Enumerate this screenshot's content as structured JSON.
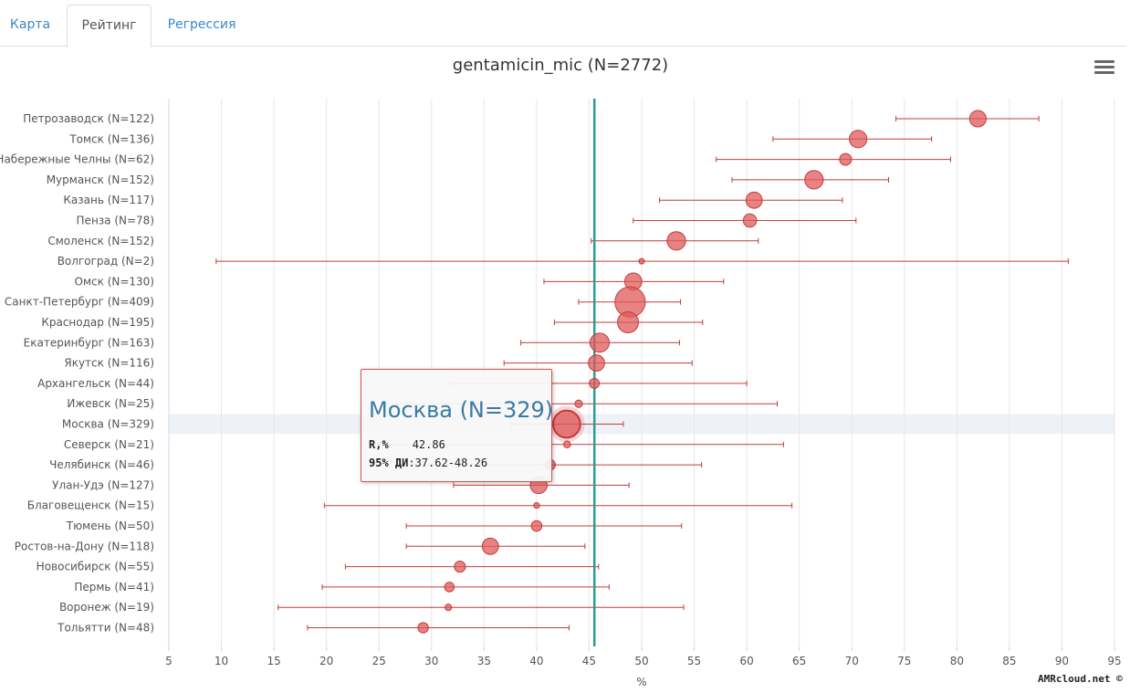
{
  "tabs": [
    {
      "label": "Карта",
      "active": false
    },
    {
      "label": "Рейтинг",
      "active": true
    },
    {
      "label": "Регрессия",
      "active": false
    }
  ],
  "menu_icon": "hamburger-icon",
  "colors": {
    "point": "#e05a5a",
    "point_stroke": "#c23b3b",
    "reference_line": "#2a9d8f",
    "tab_link": "#3a87c8",
    "highlight_band": "#eef2f8"
  },
  "tooltip": {
    "title": "Москва (N=329)",
    "r_label": "R,%",
    "r_value": "42.86",
    "ci_label": "95% ДИ",
    "ci_value": ":37.62-48.26"
  },
  "credits": "AMRcloud.net ©",
  "chart_data": {
    "type": "scatter",
    "title": "gentamicin_mic (N=2772)",
    "xlabel": "%",
    "ylabel": "",
    "xlim": [
      5,
      95
    ],
    "xticks": [
      5,
      10,
      15,
      20,
      25,
      30,
      35,
      40,
      45,
      50,
      55,
      60,
      65,
      70,
      75,
      80,
      85,
      90,
      95
    ],
    "reference_value": 45.5,
    "grid": true,
    "highlighted": "Москва (N=329)",
    "points": [
      {
        "label": "Петрозаводск (N=122)",
        "n": 122,
        "value": 82.0,
        "ci_low": 74.2,
        "ci_high": 87.8
      },
      {
        "label": "Томск (N=136)",
        "n": 136,
        "value": 70.6,
        "ci_low": 62.5,
        "ci_high": 77.6
      },
      {
        "label": "Набережные Челны (N=62)",
        "n": 62,
        "value": 69.4,
        "ci_low": 57.1,
        "ci_high": 79.4
      },
      {
        "label": "Мурманск (N=152)",
        "n": 152,
        "value": 66.4,
        "ci_low": 58.6,
        "ci_high": 73.5
      },
      {
        "label": "Казань (N=117)",
        "n": 117,
        "value": 60.7,
        "ci_low": 51.7,
        "ci_high": 69.1
      },
      {
        "label": "Пенза (N=78)",
        "n": 78,
        "value": 60.3,
        "ci_low": 49.2,
        "ci_high": 70.4
      },
      {
        "label": "Смоленск (N=152)",
        "n": 152,
        "value": 53.3,
        "ci_low": 45.2,
        "ci_high": 61.1
      },
      {
        "label": "Волгоград (N=2)",
        "n": 2,
        "value": 50.0,
        "ci_low": 9.5,
        "ci_high": 90.6
      },
      {
        "label": "Омск (N=130)",
        "n": 130,
        "value": 49.2,
        "ci_low": 40.7,
        "ci_high": 57.8
      },
      {
        "label": "Санкт-Петербург (N=409)",
        "n": 409,
        "value": 48.9,
        "ci_low": 44.0,
        "ci_high": 53.7
      },
      {
        "label": "Краснодар (N=195)",
        "n": 195,
        "value": 48.7,
        "ci_low": 41.7,
        "ci_high": 55.8
      },
      {
        "label": "Екатеринбург (N=163)",
        "n": 163,
        "value": 46.0,
        "ci_low": 38.5,
        "ci_high": 53.6
      },
      {
        "label": "Якутск (N=116)",
        "n": 116,
        "value": 45.7,
        "ci_low": 36.9,
        "ci_high": 54.8
      },
      {
        "label": "Архангельск (N=44)",
        "n": 44,
        "value": 45.5,
        "ci_low": 31.7,
        "ci_high": 60.0
      },
      {
        "label": "Ижевск (N=25)",
        "n": 25,
        "value": 44.0,
        "ci_low": 26.7,
        "ci_high": 62.9
      },
      {
        "label": "Москва (N=329)",
        "n": 329,
        "value": 42.86,
        "ci_low": 37.62,
        "ci_high": 48.26
      },
      {
        "label": "Северск (N=21)",
        "n": 21,
        "value": 42.9,
        "ci_low": 24.5,
        "ci_high": 63.5
      },
      {
        "label": "Челябинск (N=46)",
        "n": 46,
        "value": 41.3,
        "ci_low": 28.3,
        "ci_high": 55.7
      },
      {
        "label": "Улан-Удэ (N=127)",
        "n": 127,
        "value": 40.2,
        "ci_low": 32.1,
        "ci_high": 48.8
      },
      {
        "label": "Благовещенск (N=15)",
        "n": 15,
        "value": 40.0,
        "ci_low": 19.8,
        "ci_high": 64.3
      },
      {
        "label": "Тюмень (N=50)",
        "n": 50,
        "value": 40.0,
        "ci_low": 27.6,
        "ci_high": 53.8
      },
      {
        "label": "Ростов-на-Дону (N=118)",
        "n": 118,
        "value": 35.6,
        "ci_low": 27.6,
        "ci_high": 44.6
      },
      {
        "label": "Новосибирск (N=55)",
        "n": 55,
        "value": 32.7,
        "ci_low": 21.8,
        "ci_high": 45.9
      },
      {
        "label": "Пермь (N=41)",
        "n": 41,
        "value": 31.7,
        "ci_low": 19.6,
        "ci_high": 46.9
      },
      {
        "label": "Воронеж (N=19)",
        "n": 19,
        "value": 31.6,
        "ci_low": 15.4,
        "ci_high": 54.0
      },
      {
        "label": "Тольятти (N=48)",
        "n": 48,
        "value": 29.2,
        "ci_low": 18.2,
        "ci_high": 43.1
      }
    ]
  }
}
